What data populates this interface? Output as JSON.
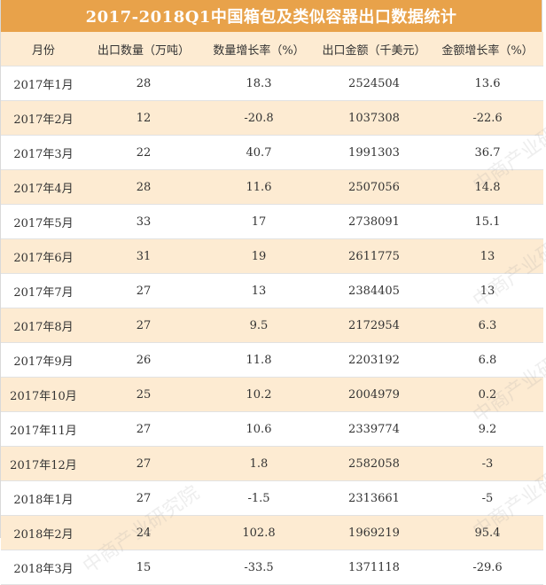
{
  "title": "2017-2018Q1中国箱包及类似容器出口数据统计",
  "headers": [
    "月份",
    "出口数量（万吨）",
    "数量增长率（%）",
    "出口金额（千美元）",
    "金额增长率（%）"
  ],
  "rows": [
    [
      "2017年1月",
      "28",
      "18.3",
      "2524504",
      "13.6"
    ],
    [
      "2017年2月",
      "12",
      "-20.8",
      "1037308",
      "-22.6"
    ],
    [
      "2017年3月",
      "22",
      "40.7",
      "1991303",
      "36.7"
    ],
    [
      "2017年4月",
      "28",
      "11.6",
      "2507056",
      "14.8"
    ],
    [
      "2017年5月",
      "33",
      "17",
      "2738091",
      "15.1"
    ],
    [
      "2017年6月",
      "31",
      "19",
      "2611775",
      "13"
    ],
    [
      "2017年7月",
      "27",
      "13",
      "2384405",
      "13"
    ],
    [
      "2017年8月",
      "27",
      "9.5",
      "2172954",
      "6.3"
    ],
    [
      "2017年9月",
      "26",
      "11.8",
      "2203192",
      "6.8"
    ],
    [
      "2017年10月",
      "25",
      "10.2",
      "2004979",
      "0.2"
    ],
    [
      "2017年11月",
      "27",
      "10.6",
      "2339774",
      "9.2"
    ],
    [
      "2017年12月",
      "27",
      "1.8",
      "2582058",
      "-3"
    ],
    [
      "2018年1月",
      "27",
      "-1.5",
      "2313661",
      "-5"
    ],
    [
      "2018年2月",
      "24",
      "102.8",
      "1969219",
      "95.4"
    ],
    [
      "2018年3月",
      "15",
      "-33.5",
      "1371118",
      "-29.6"
    ]
  ],
  "watermark": "中商产业研究院",
  "colors": {
    "title_bg": "#e8a24a",
    "stripe": "#fdebd2",
    "title_text": "#ffffff"
  },
  "chart_data": {
    "type": "table",
    "title": "2017-2018Q1中国箱包及类似容器出口数据统计",
    "columns": [
      "月份",
      "出口数量（万吨）",
      "数量增长率（%）",
      "出口金额（千美元）",
      "金额增长率（%）"
    ],
    "categories": [
      "2017年1月",
      "2017年2月",
      "2017年3月",
      "2017年4月",
      "2017年5月",
      "2017年6月",
      "2017年7月",
      "2017年8月",
      "2017年9月",
      "2017年10月",
      "2017年11月",
      "2017年12月",
      "2018年1月",
      "2018年2月",
      "2018年3月"
    ],
    "series": [
      {
        "name": "出口数量（万吨）",
        "values": [
          28,
          12,
          22,
          28,
          33,
          31,
          27,
          27,
          26,
          25,
          27,
          27,
          27,
          24,
          15
        ]
      },
      {
        "name": "数量增长率（%）",
        "values": [
          18.3,
          -20.8,
          40.7,
          11.6,
          17,
          19,
          13,
          9.5,
          11.8,
          10.2,
          10.6,
          1.8,
          -1.5,
          102.8,
          -33.5
        ]
      },
      {
        "name": "出口金额（千美元）",
        "values": [
          2524504,
          1037308,
          1991303,
          2507056,
          2738091,
          2611775,
          2384405,
          2172954,
          2203192,
          2004979,
          2339774,
          2582058,
          2313661,
          1969219,
          1371118
        ]
      },
      {
        "name": "金额增长率（%）",
        "values": [
          13.6,
          -22.6,
          36.7,
          14.8,
          15.1,
          13,
          13,
          6.3,
          6.8,
          0.2,
          9.2,
          -3,
          -5,
          95.4,
          -29.6
        ]
      }
    ]
  }
}
